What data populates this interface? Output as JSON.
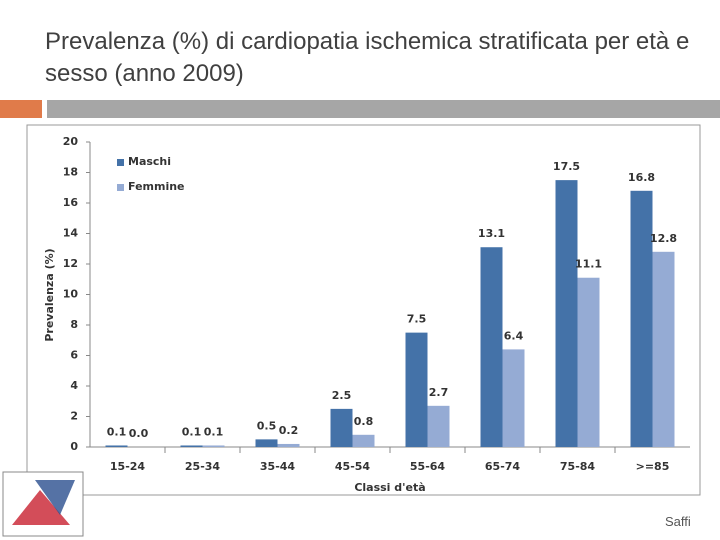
{
  "footer": "Saffi",
  "chart_data": {
    "type": "bar",
    "title": "Prevalenza (%) di cardiopatia ischemica stratificata per età e sesso (anno 2009)",
    "x_label": "Classi d'età",
    "y_label": "Prevalenza (%)",
    "categories": [
      "15-24",
      "25-34",
      "35-44",
      "45-54",
      "55-64",
      "65-74",
      "75-84",
      ">=85"
    ],
    "series": [
      {
        "name": "Maschi",
        "color": "#4472a8",
        "values": [
          0.1,
          0.1,
          0.5,
          2.5,
          7.5,
          13.1,
          17.5,
          16.8
        ]
      },
      {
        "name": "Femmine",
        "color": "#95abd4",
        "values": [
          0,
          0.1,
          0.2,
          0.8,
          2.7,
          6.4,
          11.1,
          12.8
        ],
        "value_labels": [
          "0.0",
          "0.1",
          "0.2",
          "0.8",
          "2.7",
          "6.4",
          "11.1",
          "12.8"
        ]
      }
    ],
    "ylim": [
      0,
      20
    ],
    "yticks": [
      0,
      2,
      4,
      6,
      8,
      10,
      12,
      14,
      16,
      18,
      20
    ],
    "grid": false,
    "legend": "top-left"
  }
}
